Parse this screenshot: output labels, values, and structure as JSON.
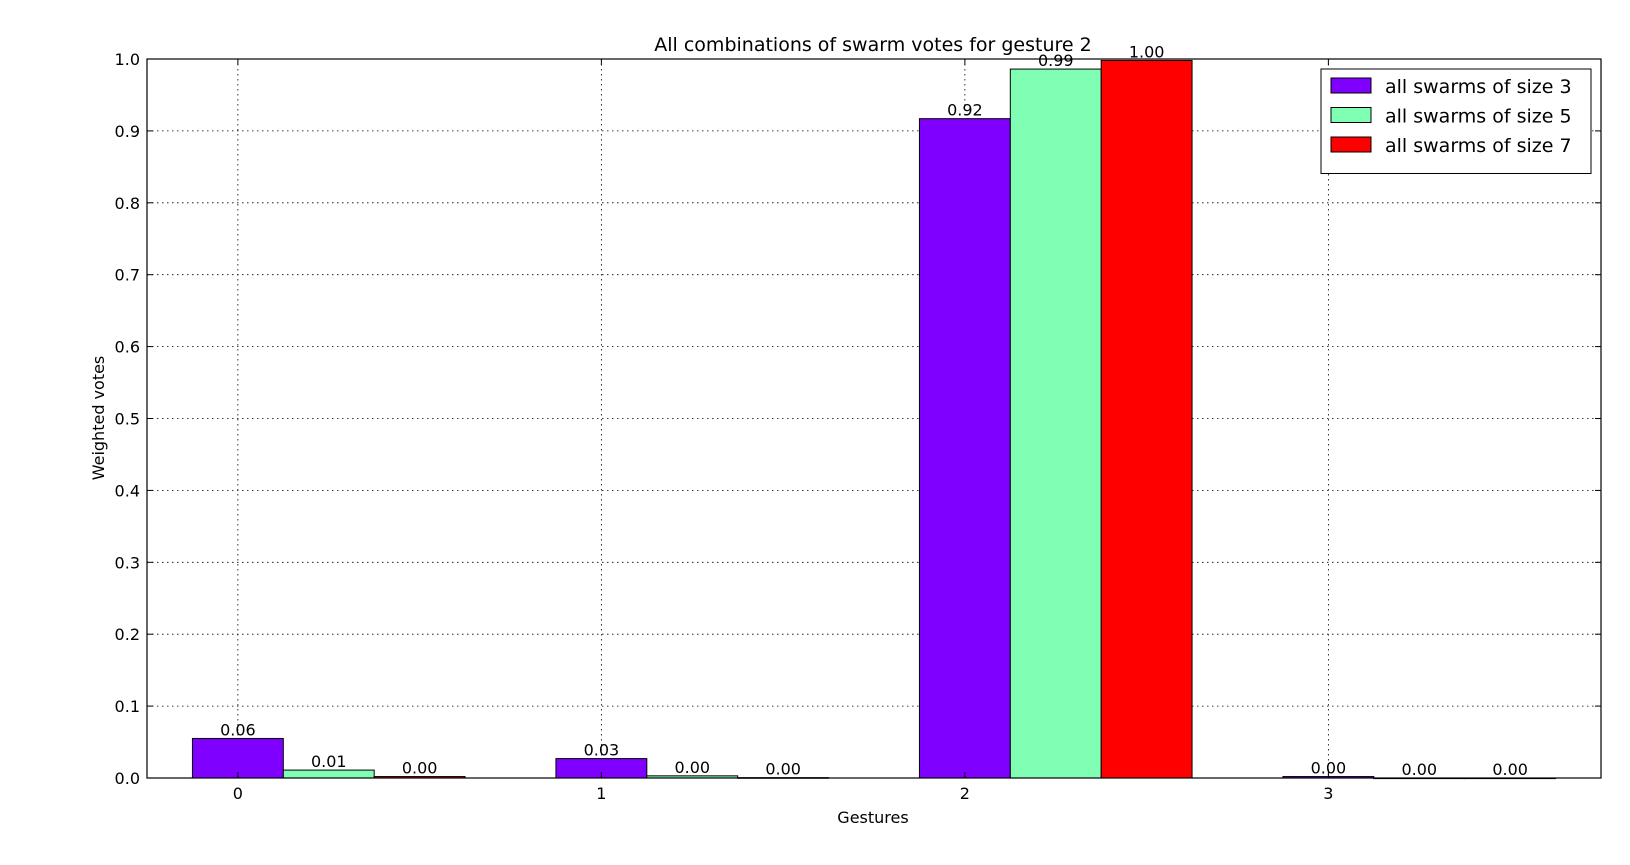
{
  "chart_data": {
    "type": "bar",
    "title": "All combinations of swarm votes for gesture 2",
    "xlabel": "Gestures",
    "ylabel": "Weighted votes",
    "categories": [
      "0",
      "1",
      "2",
      "3"
    ],
    "ylim": [
      0,
      1.0
    ],
    "yticks": [
      "0.0",
      "0.1",
      "0.2",
      "0.3",
      "0.4",
      "0.5",
      "0.6",
      "0.7",
      "0.8",
      "0.9",
      "1.0"
    ],
    "grid": true,
    "legend_position": "top-right",
    "series": [
      {
        "name": "all swarms of size 3",
        "color": "#7f00ff",
        "values": [
          0.055,
          0.027,
          0.917,
          0.002
        ],
        "labels": [
          "0.06",
          "0.03",
          "0.92",
          "0.00"
        ]
      },
      {
        "name": "all swarms of size 5",
        "color": "#80ffb4",
        "values": [
          0.011,
          0.003,
          0.986,
          0.0
        ],
        "labels": [
          "0.01",
          "0.00",
          "0.99",
          "0.00"
        ]
      },
      {
        "name": "all swarms of size 7",
        "color": "#ff0000",
        "values": [
          0.002,
          0.0005,
          0.998,
          0.0
        ],
        "labels": [
          "0.00",
          "0.00",
          "1.00",
          "0.00"
        ]
      }
    ]
  }
}
